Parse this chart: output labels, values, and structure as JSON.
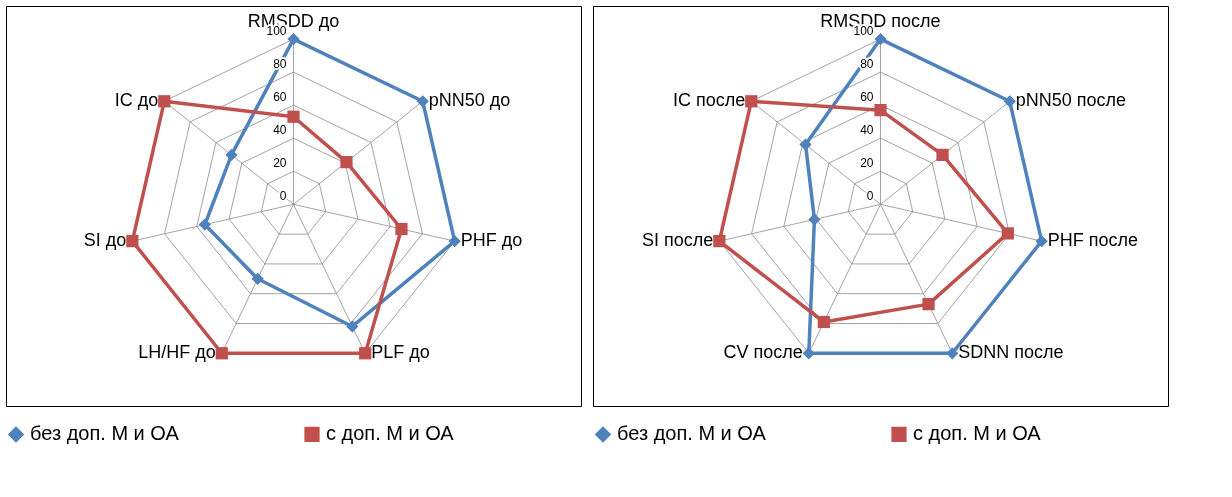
{
  "chart_data": [
    {
      "type": "radar",
      "categories": [
        "RMSDD до",
        "pNN50 до",
        "PHF до",
        "PLF до",
        "LH/HF до",
        "SI до",
        "IC до"
      ],
      "ylim": [
        0,
        100
      ],
      "yticks": [
        0,
        20,
        40,
        60,
        80,
        100
      ],
      "grid": true,
      "legend": "bottom",
      "series": [
        {
          "name": "без доп. М и ОА",
          "color": "#4f81bd",
          "marker": "diamond",
          "values": [
            100,
            100,
            100,
            82,
            50,
            55,
            48
          ]
        },
        {
          "name": "с доп. М и ОА",
          "color": "#c0504d",
          "marker": "square",
          "values": [
            53,
            41,
            67,
            100,
            100,
            100,
            100
          ]
        }
      ]
    },
    {
      "type": "radar",
      "categories": [
        "RMSDD после",
        "pNN50 после",
        "PHF после",
        "SDNN после",
        "CV после",
        "SI после",
        "IC после"
      ],
      "ylim": [
        0,
        100
      ],
      "yticks": [
        0,
        20,
        40,
        60,
        80,
        100
      ],
      "grid": true,
      "legend": "bottom",
      "series": [
        {
          "name": "без доп. М и ОА",
          "color": "#4f81bd",
          "marker": "diamond",
          "values": [
            100,
            100,
            100,
            100,
            100,
            41,
            58
          ]
        },
        {
          "name": "с доп. М и ОА",
          "color": "#c0504d",
          "marker": "square",
          "values": [
            57,
            48,
            79,
            67,
            79,
            100,
            100
          ]
        }
      ]
    }
  ]
}
